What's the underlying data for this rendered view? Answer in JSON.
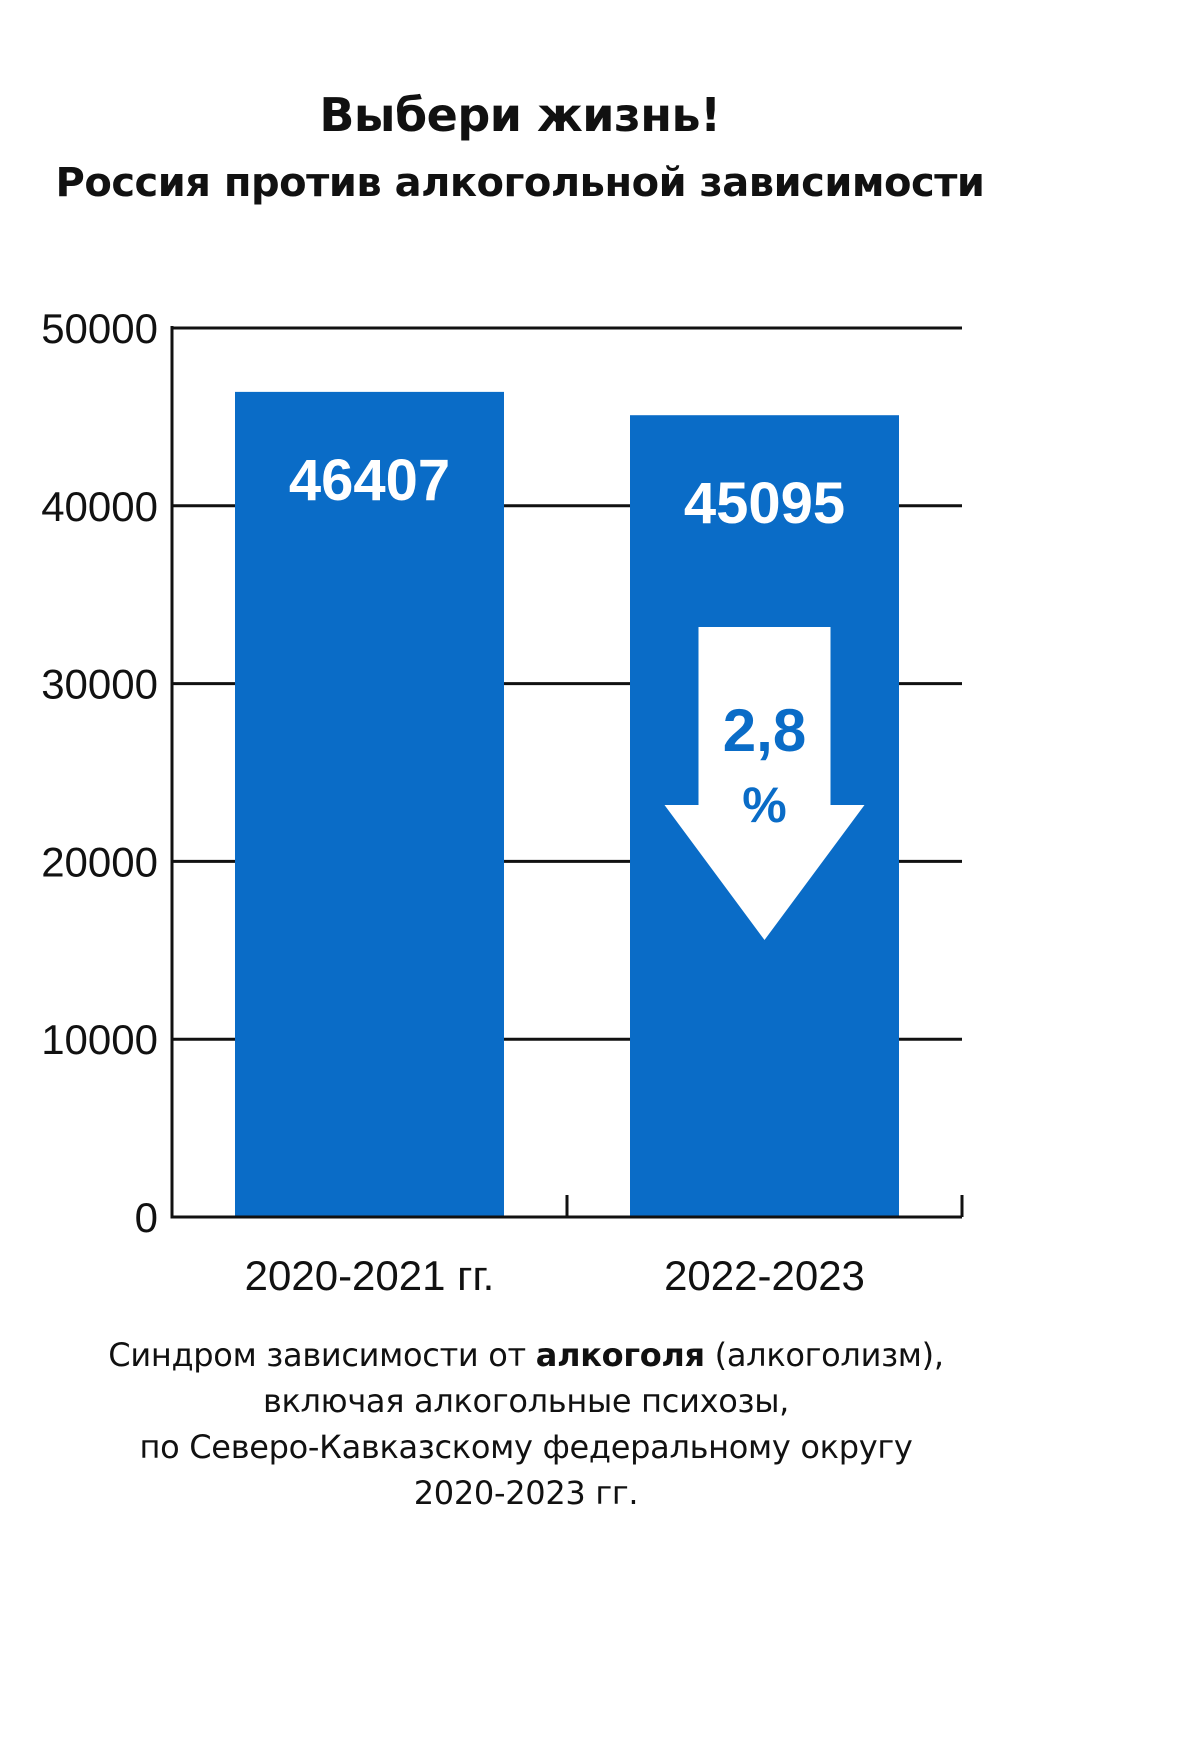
{
  "header": {
    "title": "Выбери жизнь!",
    "subtitle": "Россия против алкогольной зависимости"
  },
  "chart_data": {
    "type": "bar",
    "categories": [
      "2020-2021 гг.",
      "2022-2023"
    ],
    "values": [
      46407,
      45095
    ],
    "ylim": [
      0,
      50000
    ],
    "yticks": [
      "0",
      "10000",
      "20000",
      "30000",
      "40000",
      "50000"
    ],
    "grid": true,
    "colors": {
      "bar": "#0a6cc7",
      "axis": "#111111",
      "label": "#ffffff"
    },
    "annotation": {
      "value": "2,8",
      "unit": "%",
      "direction": "down"
    }
  },
  "caption": {
    "line1_pre": "Синдром зависимости  от ",
    "line1_bold": "алкоголя",
    "line1_post": " (алкоголизм),",
    "line2": "включая алкогольные психозы,",
    "line3": "по Северо-Кавказскому федеральному округу",
    "line4": "2020-2023 гг."
  }
}
